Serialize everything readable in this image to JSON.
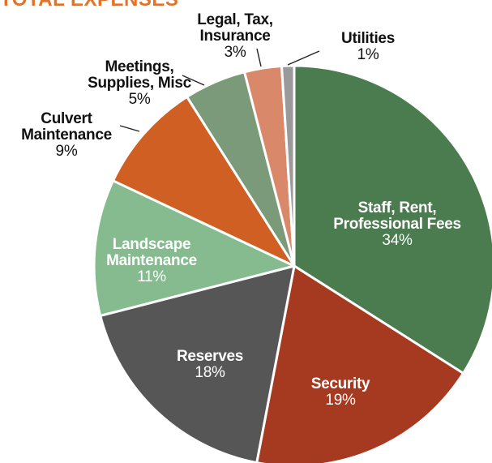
{
  "heading": {
    "text": "TOTAL EXPENSES",
    "color": "#e2722a"
  },
  "chart_data": {
    "type": "pie",
    "start_angle_deg": 0,
    "direction": "clockwise",
    "legend": "none",
    "slices": [
      {
        "label": "Staff, Rent, Professional Fees",
        "lines": [
          "Staff, Rent,",
          "Professional Fees"
        ],
        "value": 34,
        "value_label": "34%",
        "color": "#4b7c4f",
        "label_style": "inside"
      },
      {
        "label": "Security",
        "lines": [
          "Security"
        ],
        "value": 19,
        "value_label": "19%",
        "color": "#a63a20",
        "label_style": "inside"
      },
      {
        "label": "Reserves",
        "lines": [
          "Reserves"
        ],
        "value": 18,
        "value_label": "18%",
        "color": "#565656",
        "label_style": "inside"
      },
      {
        "label": "Landscape Maintenance",
        "lines": [
          "Landscape",
          "Maintenance"
        ],
        "value": 11,
        "value_label": "11%",
        "color": "#85bb8e",
        "label_style": "inside"
      },
      {
        "label": "Culvert Maintenance",
        "lines": [
          "Culvert",
          "Maintenance"
        ],
        "value": 9,
        "value_label": "9%",
        "color": "#cf5f22",
        "label_style": "outside"
      },
      {
        "label": "Meetings, Supplies, Misc",
        "lines": [
          "Meetings,",
          "Supplies, Misc"
        ],
        "value": 5,
        "value_label": "5%",
        "color": "#7a9a7a",
        "label_style": "outside"
      },
      {
        "label": "Legal, Tax, Insurance",
        "lines": [
          "Legal, Tax,",
          "Insurance"
        ],
        "value": 3,
        "value_label": "3%",
        "color": "#d9886a",
        "label_style": "outside"
      },
      {
        "label": "Utilities",
        "lines": [
          "Utilities"
        ],
        "value": 1,
        "value_label": "1%",
        "color": "#9a9a9a",
        "label_style": "outside"
      }
    ]
  }
}
